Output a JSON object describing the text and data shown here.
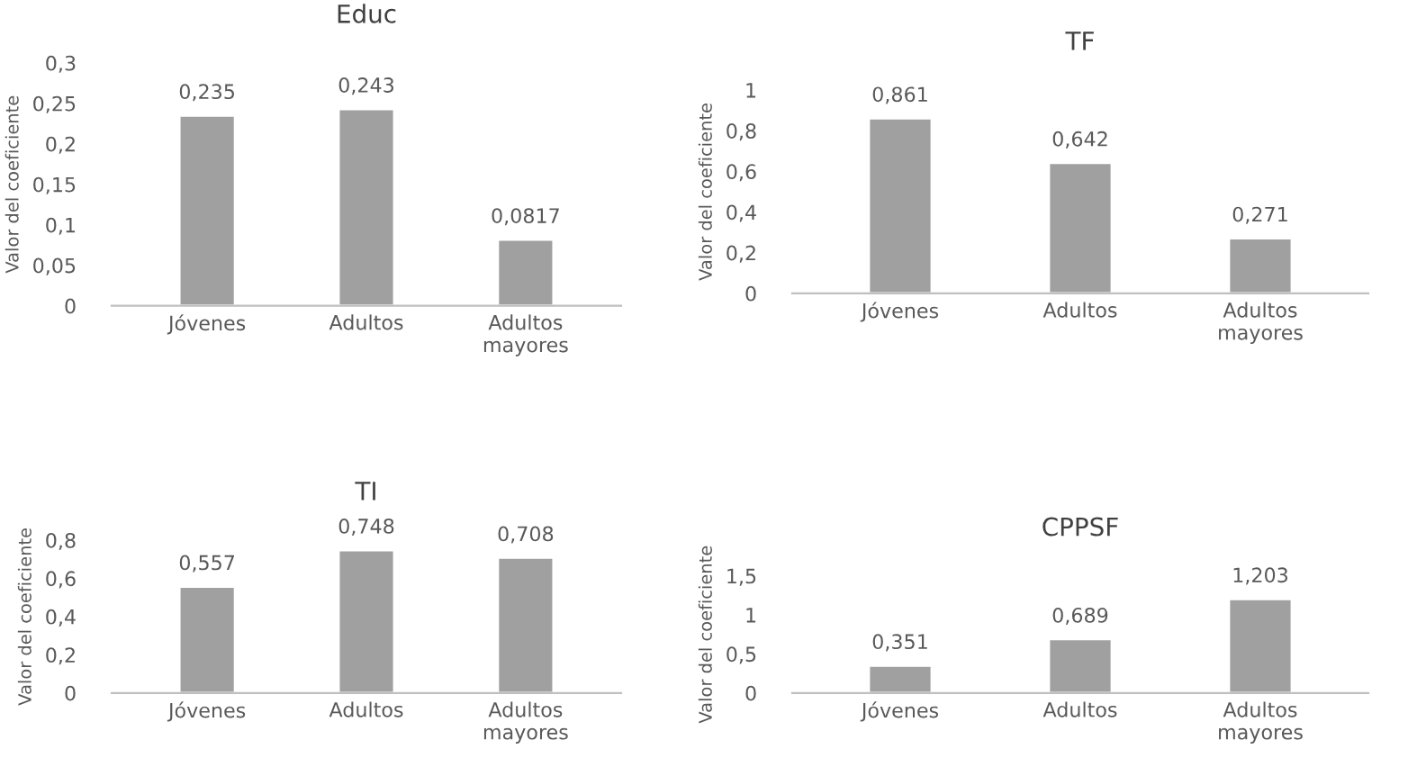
{
  "chart_data": [
    {
      "type": "bar",
      "title": "Educ",
      "ylabel": "Valor del coeficiente",
      "categories": [
        "Jóvenes",
        "Adultos",
        "Adultos\nmayores"
      ],
      "values": [
        0.235,
        0.243,
        0.0817
      ],
      "value_labels": [
        "0,235",
        "0,243",
        "0,0817"
      ],
      "color": "#a0a0a0",
      "ylim": [
        0,
        0.3
      ],
      "yticks": [
        {
          "value": 0,
          "label": "0"
        },
        {
          "value": 0.05,
          "label": "0,05"
        },
        {
          "value": 0.1,
          "label": "0,1"
        },
        {
          "value": 0.15,
          "label": "0,15"
        },
        {
          "value": 0.2,
          "label": "0,2"
        },
        {
          "value": 0.25,
          "label": "0,25"
        },
        {
          "value": 0.3,
          "label": "0,3"
        }
      ],
      "grid": false,
      "legend": false
    },
    {
      "type": "bar",
      "title": "TF",
      "ylabel": "Valor del coeficiente",
      "categories": [
        "Jóvenes",
        "Adultos",
        "Adultos\nmayores"
      ],
      "values": [
        0.861,
        0.642,
        0.271
      ],
      "value_labels": [
        "0,861",
        "0,642",
        "0,271"
      ],
      "color": "#a0a0a0",
      "ylim": [
        0,
        1
      ],
      "yticks": [
        {
          "value": 0,
          "label": "0"
        },
        {
          "value": 0.2,
          "label": "0,2"
        },
        {
          "value": 0.4,
          "label": "0,4"
        },
        {
          "value": 0.6,
          "label": "0,6"
        },
        {
          "value": 0.8,
          "label": "0,8"
        },
        {
          "value": 1,
          "label": "1"
        }
      ],
      "grid": false,
      "legend": false
    },
    {
      "type": "bar",
      "title": "TI",
      "ylabel": "Valor del coeficiente",
      "categories": [
        "Jóvenes",
        "Adultos",
        "Adultos\nmayores"
      ],
      "values": [
        0.557,
        0.748,
        0.708
      ],
      "value_labels": [
        "0,557",
        "0,748",
        "0,708"
      ],
      "color": "#a0a0a0",
      "ylim": [
        0,
        0.8
      ],
      "yticks": [
        {
          "value": 0,
          "label": "0"
        },
        {
          "value": 0.2,
          "label": "0,2"
        },
        {
          "value": 0.4,
          "label": "0,4"
        },
        {
          "value": 0.6,
          "label": "0,6"
        },
        {
          "value": 0.8,
          "label": "0,8"
        }
      ],
      "grid": false,
      "legend": false
    },
    {
      "type": "bar",
      "title": "CPPSF",
      "ylabel": "Valor del coeficiente",
      "categories": [
        "Jóvenes",
        "Adultos",
        "Adultos\nmayores"
      ],
      "values": [
        0.351,
        0.689,
        1.203
      ],
      "value_labels": [
        "0,351",
        "0,689",
        "1,203"
      ],
      "color": "#a0a0a0",
      "ylim": [
        0,
        1.5
      ],
      "yticks": [
        {
          "value": 0,
          "label": "0"
        },
        {
          "value": 0.5,
          "label": "0,5"
        },
        {
          "value": 1,
          "label": "1"
        },
        {
          "value": 1.5,
          "label": "1,5"
        }
      ],
      "grid": false,
      "legend": false
    }
  ]
}
